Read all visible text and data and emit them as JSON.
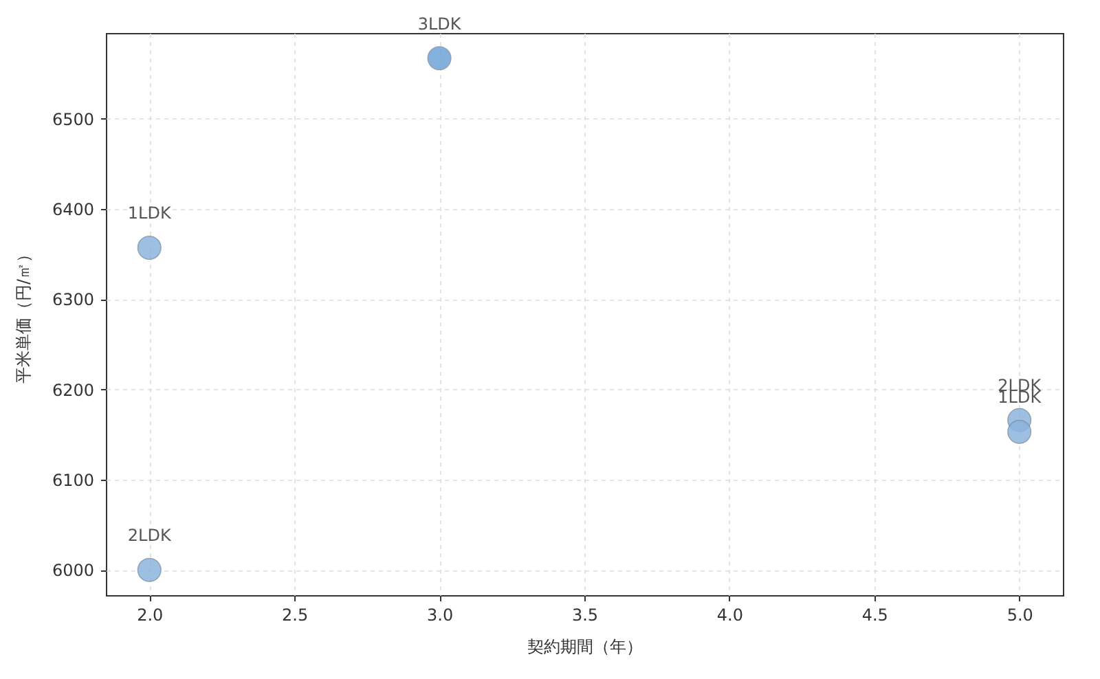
{
  "chart_data": {
    "type": "scatter",
    "xlabel": "契約期間（年）",
    "ylabel": "平米単価（円/㎡）",
    "x": [
      2,
      2,
      3,
      5,
      5
    ],
    "values": [
      6357,
      6000,
      6567,
      6166,
      6153
    ],
    "colors": [
      "#8db4de",
      "#8db4de",
      "#6fa3d8",
      "#8db4de",
      "#8db4de"
    ],
    "xlim": [
      1.85,
      5.15
    ],
    "ylim": [
      5972,
      6595
    ],
    "xticks": [
      {
        "value": 2,
        "label": "2.0"
      },
      {
        "value": 2.5,
        "label": "2.5"
      },
      {
        "value": 3,
        "label": "3.0"
      },
      {
        "value": 3.5,
        "label": "3.5"
      },
      {
        "value": 4,
        "label": "4.0"
      },
      {
        "value": 4.5,
        "label": "4.5"
      },
      {
        "value": 5,
        "label": "5.0"
      }
    ],
    "yticks": [
      6000,
      6100,
      6200,
      6300,
      6400,
      6500
    ],
    "grid": true,
    "marker": "circle",
    "annotations": [
      {
        "text": "1LDK",
        "x": 2,
        "y": 6357
      },
      {
        "text": "2LDK",
        "x": 2,
        "y": 6000
      },
      {
        "text": "3LDK",
        "x": 3,
        "y": 6567
      },
      {
        "text": "2LDK",
        "x": 5,
        "y": 6166
      },
      {
        "text": "1LDK",
        "x": 5,
        "y": 6153
      }
    ]
  }
}
